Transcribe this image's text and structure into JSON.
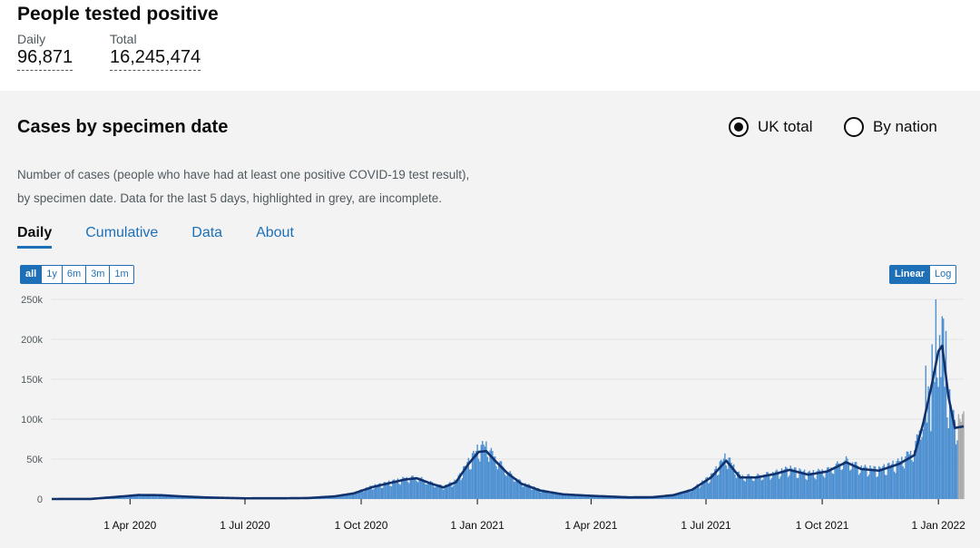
{
  "header": {
    "title": "People tested positive",
    "daily_label": "Daily",
    "daily_value": "96,871",
    "total_label": "Total",
    "total_value": "16,245,474"
  },
  "card": {
    "title": "Cases by specimen date",
    "radio_uk": "UK total",
    "radio_nation": "By nation",
    "desc_line1": "Number of cases (people who have had at least one positive COVID-19 test result),",
    "desc_line2": "by specimen date. Data for the last 5 days, highlighted in grey, are incomplete.",
    "tabs": [
      "Daily",
      "Cumulative",
      "Data",
      "About"
    ],
    "ranges": [
      "all",
      "1y",
      "6m",
      "3m",
      "1m"
    ],
    "scales": [
      "Linear",
      "Log"
    ]
  },
  "colors": {
    "bar": "#4c8fd1",
    "incomplete_bar": "#a9a9a9",
    "average_line": "#12326e",
    "accent": "#1d70b8"
  },
  "chart_data": {
    "type": "bar",
    "title": "",
    "xlabel": "",
    "ylabel": "",
    "ylim": [
      0,
      250000
    ],
    "yticks": [
      0,
      50000,
      100000,
      150000,
      200000,
      250000
    ],
    "ytick_labels": [
      "0",
      "50k",
      "100k",
      "150k",
      "200k",
      "250k"
    ],
    "xtick_labels": [
      "1 Apr 2020",
      "1 Jul 2020",
      "1 Oct 2020",
      "1 Jan 2021",
      "1 Apr 2021",
      "1 Jul 2021",
      "1 Oct 2021",
      "1 Jan 2022"
    ],
    "xtick_dates": [
      "2020-04-01",
      "2020-07-01",
      "2020-10-01",
      "2021-01-01",
      "2021-04-01",
      "2021-07-01",
      "2021-10-01",
      "2022-01-01"
    ],
    "x_range": [
      "2020-01-30",
      "2022-01-21"
    ],
    "grid": true,
    "series": [
      {
        "kind": "daily",
        "points": [
          [
            "2020-01-30",
            0
          ],
          [
            "2020-03-01",
            100
          ],
          [
            "2020-03-20",
            3000
          ],
          [
            "2020-04-08",
            5500
          ],
          [
            "2020-04-25",
            5200
          ],
          [
            "2020-05-10",
            3500
          ],
          [
            "2020-06-01",
            2000
          ],
          [
            "2020-07-01",
            900
          ],
          [
            "2020-08-01",
            1000
          ],
          [
            "2020-08-20",
            1300
          ],
          [
            "2020-09-10",
            3500
          ],
          [
            "2020-09-25",
            7500
          ],
          [
            "2020-10-10",
            15500
          ],
          [
            "2020-10-25",
            21000
          ],
          [
            "2020-11-05",
            25000
          ],
          [
            "2020-11-14",
            26500
          ],
          [
            "2020-11-25",
            20000
          ],
          [
            "2020-12-05",
            15000
          ],
          [
            "2020-12-15",
            22000
          ],
          [
            "2020-12-25",
            45000
          ],
          [
            "2021-01-02",
            62000
          ],
          [
            "2021-01-08",
            65000
          ],
          [
            "2021-01-15",
            50000
          ],
          [
            "2021-01-25",
            33000
          ],
          [
            "2021-02-05",
            20000
          ],
          [
            "2021-02-20",
            11000
          ],
          [
            "2021-03-10",
            6000
          ],
          [
            "2021-04-01",
            4200
          ],
          [
            "2021-05-01",
            2200
          ],
          [
            "2021-05-20",
            2400
          ],
          [
            "2021-06-05",
            5000
          ],
          [
            "2021-06-20",
            12000
          ],
          [
            "2021-07-05",
            28000
          ],
          [
            "2021-07-17",
            52000
          ],
          [
            "2021-07-28",
            28000
          ],
          [
            "2021-08-10",
            27500
          ],
          [
            "2021-08-25",
            32000
          ],
          [
            "2021-09-05",
            37000
          ],
          [
            "2021-09-20",
            31000
          ],
          [
            "2021-10-05",
            35000
          ],
          [
            "2021-10-20",
            47000
          ],
          [
            "2021-11-01",
            38000
          ],
          [
            "2021-11-15",
            36000
          ],
          [
            "2021-12-01",
            45000
          ],
          [
            "2021-12-13",
            60000
          ],
          [
            "2021-12-20",
            100000
          ],
          [
            "2021-12-27",
            150000
          ],
          [
            "2022-01-01",
            190000
          ],
          [
            "2022-01-04",
            200000
          ],
          [
            "2022-01-09",
            130000
          ],
          [
            "2022-01-14",
            90000
          ],
          [
            "2022-01-21",
            96871
          ]
        ]
      },
      {
        "kind": "average",
        "points": [
          [
            "2020-01-30",
            0
          ],
          [
            "2020-03-01",
            100
          ],
          [
            "2020-03-20",
            2500
          ],
          [
            "2020-04-08",
            5000
          ],
          [
            "2020-04-25",
            4800
          ],
          [
            "2020-05-10",
            3400
          ],
          [
            "2020-06-01",
            1900
          ],
          [
            "2020-07-01",
            850
          ],
          [
            "2020-08-01",
            950
          ],
          [
            "2020-08-20",
            1200
          ],
          [
            "2020-09-10",
            3300
          ],
          [
            "2020-09-25",
            7000
          ],
          [
            "2020-10-10",
            15000
          ],
          [
            "2020-10-25",
            20500
          ],
          [
            "2020-11-05",
            24500
          ],
          [
            "2020-11-14",
            26000
          ],
          [
            "2020-11-25",
            19500
          ],
          [
            "2020-12-05",
            14500
          ],
          [
            "2020-12-15",
            21000
          ],
          [
            "2020-12-25",
            44000
          ],
          [
            "2021-01-02",
            59000
          ],
          [
            "2021-01-08",
            60000
          ],
          [
            "2021-01-15",
            48000
          ],
          [
            "2021-01-25",
            32000
          ],
          [
            "2021-02-05",
            19000
          ],
          [
            "2021-02-20",
            10500
          ],
          [
            "2021-03-10",
            5800
          ],
          [
            "2021-04-01",
            4000
          ],
          [
            "2021-05-01",
            2100
          ],
          [
            "2021-05-20",
            2300
          ],
          [
            "2021-06-05",
            4800
          ],
          [
            "2021-06-20",
            11500
          ],
          [
            "2021-07-05",
            27000
          ],
          [
            "2021-07-17",
            48000
          ],
          [
            "2021-07-28",
            27000
          ],
          [
            "2021-08-10",
            27000
          ],
          [
            "2021-08-25",
            31500
          ],
          [
            "2021-09-05",
            36500
          ],
          [
            "2021-09-20",
            30500
          ],
          [
            "2021-10-05",
            34500
          ],
          [
            "2021-10-20",
            46000
          ],
          [
            "2021-11-01",
            37500
          ],
          [
            "2021-11-15",
            35500
          ],
          [
            "2021-12-01",
            44000
          ],
          [
            "2021-12-13",
            55000
          ],
          [
            "2021-12-20",
            95000
          ],
          [
            "2021-12-27",
            145000
          ],
          [
            "2022-01-01",
            185000
          ],
          [
            "2022-01-04",
            192000
          ],
          [
            "2022-01-09",
            128000
          ],
          [
            "2022-01-14",
            89000
          ],
          [
            "2022-01-21",
            91000
          ]
        ]
      }
    ]
  }
}
